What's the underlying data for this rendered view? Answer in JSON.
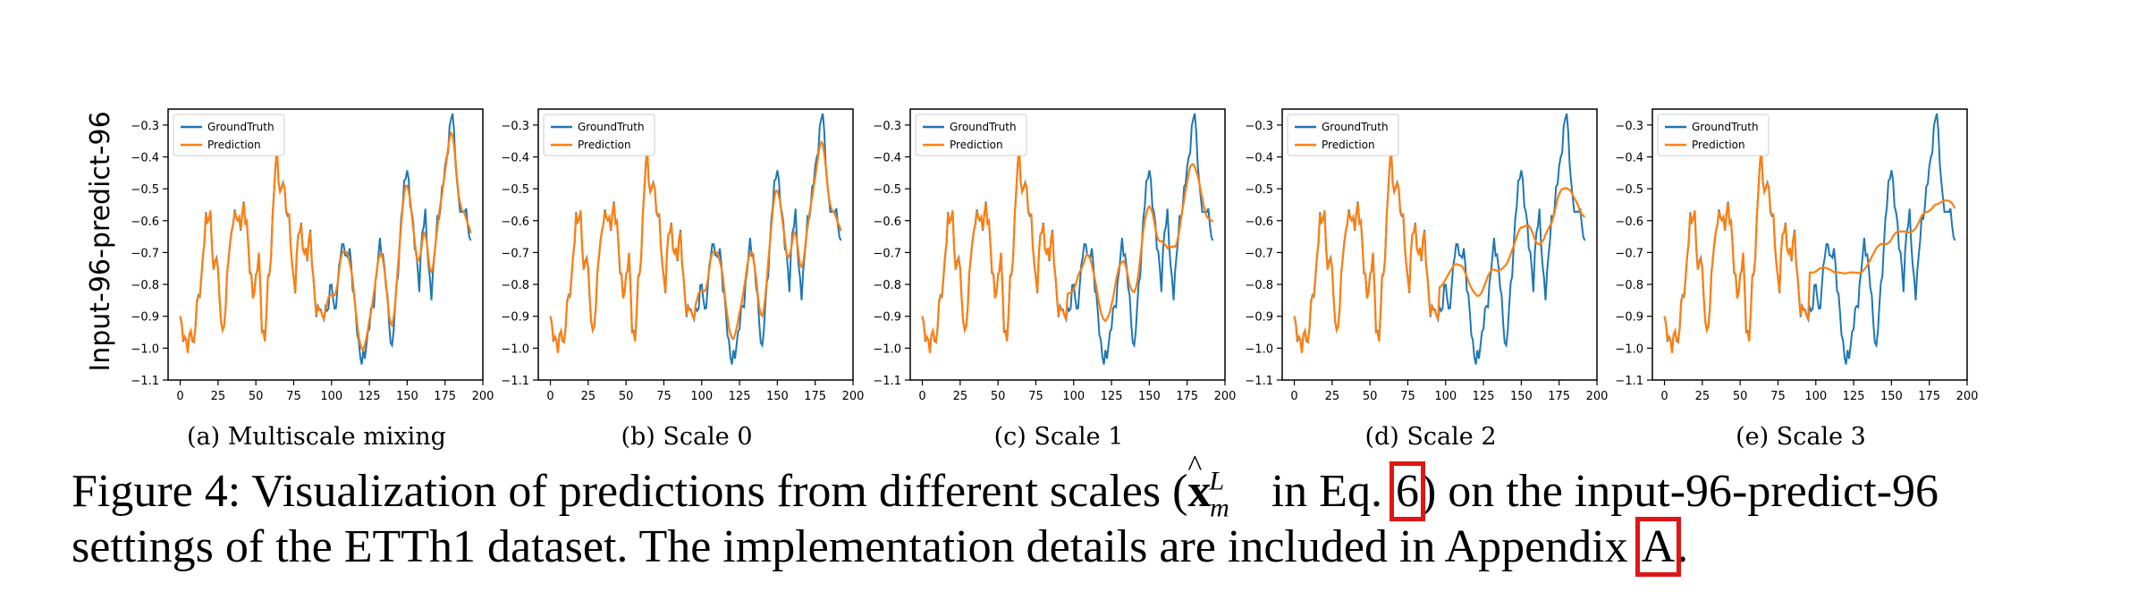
{
  "row_label": "Input-96-predict-96",
  "legend": {
    "groundtruth": "GroundTruth",
    "prediction": "Prediction"
  },
  "colors": {
    "groundtruth": "#1f77b4",
    "prediction": "#ff7f0e",
    "ref_box": "#e01515"
  },
  "panels": [
    {
      "caption": "(a) Multiscale mixing"
    },
    {
      "caption": "(b) Scale 0"
    },
    {
      "caption": "(c) Scale 1"
    },
    {
      "caption": "(d) Scale 2"
    },
    {
      "caption": "(e) Scale 3"
    }
  ],
  "caption": {
    "line1_before": "Figure 4: Visualization of predictions from different scales (",
    "math_var": "x",
    "math_sup": "L",
    "math_sub": "m",
    "line1_mid": " in Eq. ",
    "eq_ref": "6",
    "line1_after": ") on the input-96-predict-96",
    "line2_before": "settings of the ETTh1 dataset. The implementation details are included in Appendix ",
    "appendix_ref": "A",
    "line2_after": "."
  },
  "chart_data": {
    "type": "line",
    "xlim": [
      -8,
      200
    ],
    "ylim": [
      -1.1,
      -0.25
    ],
    "xticks": [
      0,
      25,
      50,
      75,
      100,
      125,
      150,
      175,
      200
    ],
    "yticks": [
      -0.3,
      -0.4,
      -0.5,
      -0.6,
      -0.7,
      -0.8,
      -0.9,
      -1.0,
      -1.1
    ],
    "legend_position": "top-left",
    "groundtruth_keypoints": [
      [
        0,
        -0.9
      ],
      [
        3,
        -0.98
      ],
      [
        5,
        -1.0
      ],
      [
        7,
        -0.93
      ],
      [
        9,
        -1.01
      ],
      [
        11,
        -0.85
      ],
      [
        14,
        -0.8
      ],
      [
        17,
        -0.58
      ],
      [
        20,
        -0.6
      ],
      [
        22,
        -0.75
      ],
      [
        24,
        -0.7
      ],
      [
        26,
        -0.85
      ],
      [
        28,
        -0.95
      ],
      [
        30,
        -0.88
      ],
      [
        32,
        -0.7
      ],
      [
        35,
        -0.6
      ],
      [
        38,
        -0.58
      ],
      [
        40,
        -0.62
      ],
      [
        42,
        -0.56
      ],
      [
        44,
        -0.6
      ],
      [
        46,
        -0.76
      ],
      [
        48,
        -0.83
      ],
      [
        50,
        -0.78
      ],
      [
        52,
        -0.72
      ],
      [
        54,
        -0.92
      ],
      [
        56,
        -0.98
      ],
      [
        58,
        -0.8
      ],
      [
        60,
        -0.7
      ],
      [
        62,
        -0.5
      ],
      [
        64,
        -0.38
      ],
      [
        66,
        -0.52
      ],
      [
        68,
        -0.48
      ],
      [
        70,
        -0.55
      ],
      [
        72,
        -0.6
      ],
      [
        74,
        -0.75
      ],
      [
        76,
        -0.8
      ],
      [
        78,
        -0.65
      ],
      [
        80,
        -0.62
      ],
      [
        82,
        -0.7
      ],
      [
        84,
        -0.72
      ],
      [
        86,
        -0.62
      ],
      [
        88,
        -0.8
      ],
      [
        90,
        -0.9
      ],
      [
        92,
        -0.85
      ],
      [
        94,
        -0.92
      ],
      [
        96,
        -0.88
      ],
      [
        98,
        -0.86
      ],
      [
        100,
        -0.8
      ],
      [
        102,
        -0.88
      ],
      [
        104,
        -0.82
      ],
      [
        106,
        -0.7
      ],
      [
        108,
        -0.66
      ],
      [
        110,
        -0.74
      ],
      [
        112,
        -0.68
      ],
      [
        114,
        -0.8
      ],
      [
        116,
        -0.9
      ],
      [
        118,
        -0.98
      ],
      [
        120,
        -1.05
      ],
      [
        122,
        -1.02
      ],
      [
        124,
        -0.95
      ],
      [
        126,
        -0.9
      ],
      [
        128,
        -0.85
      ],
      [
        130,
        -0.75
      ],
      [
        132,
        -0.68
      ],
      [
        134,
        -0.7
      ],
      [
        136,
        -0.8
      ],
      [
        138,
        -0.92
      ],
      [
        140,
        -1.0
      ],
      [
        142,
        -0.88
      ],
      [
        144,
        -0.75
      ],
      [
        146,
        -0.6
      ],
      [
        148,
        -0.5
      ],
      [
        150,
        -0.42
      ],
      [
        152,
        -0.55
      ],
      [
        154,
        -0.62
      ],
      [
        156,
        -0.7
      ],
      [
        158,
        -0.82
      ],
      [
        160,
        -0.62
      ],
      [
        162,
        -0.58
      ],
      [
        164,
        -0.75
      ],
      [
        166,
        -0.82
      ],
      [
        168,
        -0.72
      ],
      [
        170,
        -0.6
      ],
      [
        172,
        -0.55
      ],
      [
        174,
        -0.48
      ],
      [
        176,
        -0.4
      ],
      [
        178,
        -0.32
      ],
      [
        180,
        -0.26
      ],
      [
        182,
        -0.4
      ],
      [
        184,
        -0.55
      ],
      [
        186,
        -0.58
      ],
      [
        188,
        -0.55
      ],
      [
        190,
        -0.62
      ],
      [
        192,
        -0.67
      ]
    ],
    "series": [
      {
        "name": "GroundTruth"
      },
      {
        "name": "Prediction"
      }
    ]
  }
}
